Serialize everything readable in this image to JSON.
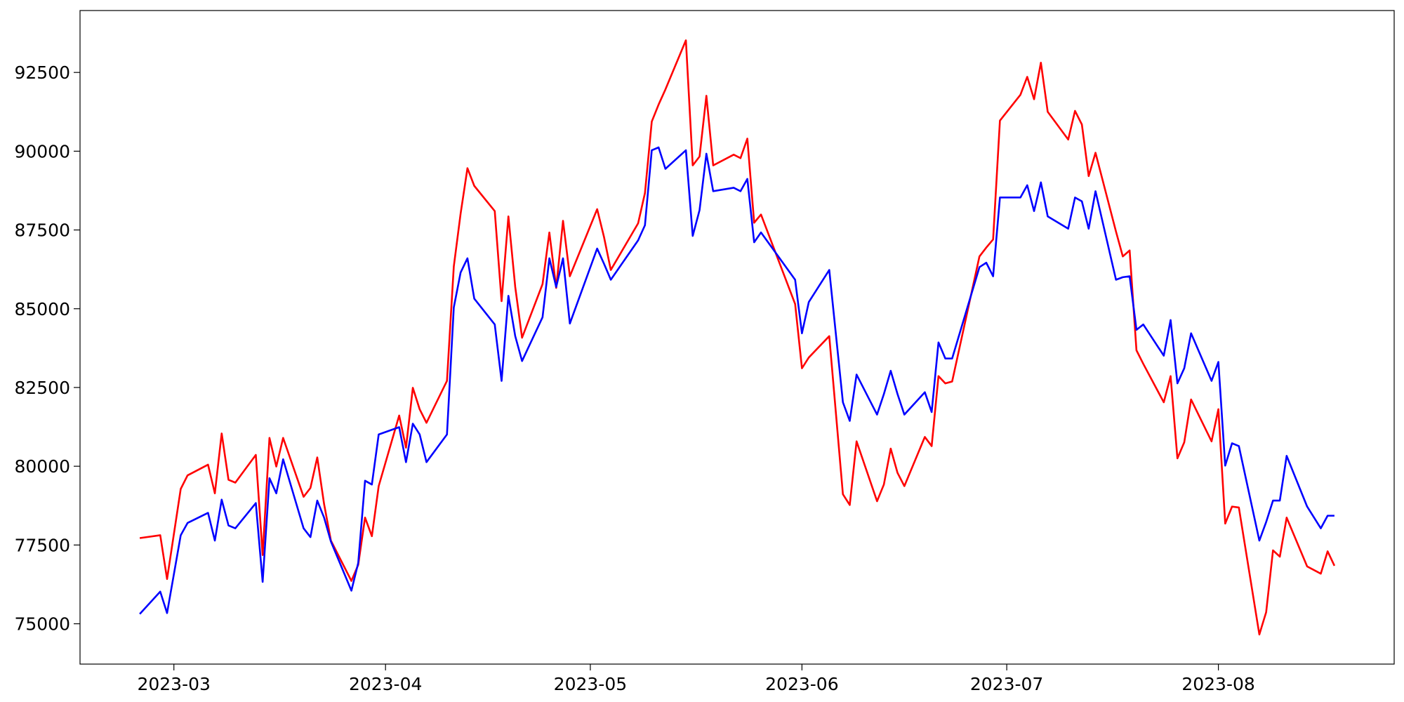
{
  "chart_data": {
    "type": "line",
    "x": [
      19412,
      19415,
      19416,
      19418,
      19419,
      19422,
      19423,
      19424,
      19425,
      19426,
      19429,
      19430,
      19431,
      19432,
      19433,
      19436,
      19437,
      19438,
      19439,
      19440,
      19443,
      19444,
      19445,
      19446,
      19447,
      19450,
      19451,
      19452,
      19453,
      19454,
      19457,
      19458,
      19459,
      19460,
      19461,
      19464,
      19465,
      19466,
      19467,
      19468,
      19471,
      19472,
      19473,
      19474,
      19475,
      19479,
      19480,
      19481,
      19485,
      19486,
      19487,
      19488,
      19489,
      19492,
      19493,
      19494,
      19495,
      19496,
      19499,
      19500,
      19501,
      19502,
      19503,
      19508,
      19509,
      19510,
      19513,
      19515,
      19516,
      19517,
      19520,
      19521,
      19522,
      19523,
      19524,
      19527,
      19528,
      19529,
      19530,
      19531,
      19535,
      19536,
      19537,
      19538,
      19541,
      19542,
      19543,
      19544,
      19545,
      19548,
      19549,
      19550,
      19551,
      19552,
      19555,
      19556,
      19557,
      19558,
      19559,
      19562,
      19563,
      19564,
      19565,
      19566,
      19569,
      19570,
      19571,
      19572,
      19573,
      19576,
      19577,
      19578,
      19579,
      19580,
      19583,
      19585,
      19586,
      19587
    ],
    "series": [
      {
        "color": "#ff0000",
        "values": [
          77720,
          77810,
          76420,
          79280,
          79710,
          80050,
          79140,
          81040,
          79570,
          79480,
          80360,
          77180,
          80900,
          79990,
          80900,
          79030,
          79310,
          80280,
          78800,
          77640,
          76360,
          76870,
          78370,
          77780,
          79370,
          81610,
          80590,
          82490,
          81810,
          81380,
          82710,
          86340,
          88020,
          89460,
          88900,
          88100,
          85240,
          87930,
          85690,
          84080,
          85780,
          87420,
          85660,
          87790,
          86030,
          88160,
          87280,
          86230,
          87710,
          88670,
          90940,
          91480,
          91960,
          93520,
          89550,
          89830,
          91760,
          89550,
          89890,
          89780,
          90400,
          87730,
          87990,
          85150,
          83110,
          83450,
          84130,
          79110,
          78770,
          80790,
          78890,
          79420,
          80560,
          79790,
          79370,
          80930,
          80640,
          82860,
          82630,
          82690,
          86660,
          86940,
          87200,
          90970,
          91790,
          92360,
          91650,
          92810,
          91250,
          90370,
          91280,
          90850,
          89210,
          89950,
          87450,
          86660,
          86850,
          83680,
          83250,
          82030,
          82860,
          80250,
          80760,
          82120,
          80790,
          81810,
          78180,
          78720,
          78690,
          74660,
          75370,
          77330,
          77130,
          78370,
          76820,
          76590,
          77300,
          76840
        ]
      },
      {
        "color": "#0000ff",
        "values": [
          75310,
          76020,
          75340,
          77810,
          78200,
          78520,
          77640,
          78940,
          78120,
          78030,
          78830,
          76330,
          79620,
          79140,
          80220,
          78030,
          77750,
          78910,
          78370,
          77610,
          76050,
          76930,
          79540,
          79420,
          81010,
          81240,
          80130,
          81350,
          81010,
          80130,
          81010,
          85040,
          86150,
          86600,
          85320,
          84500,
          82710,
          85410,
          84130,
          83340,
          84730,
          86600,
          85690,
          86600,
          84530,
          86910,
          86430,
          85920,
          87170,
          87650,
          90030,
          90120,
          89440,
          90030,
          87310,
          88130,
          89920,
          88730,
          88840,
          88730,
          89120,
          87110,
          87420,
          85920,
          84220,
          85210,
          86230,
          82030,
          81440,
          82910,
          81640,
          82290,
          83030,
          82290,
          81640,
          82350,
          81720,
          83930,
          83420,
          83420,
          86320,
          86460,
          86030,
          88530,
          88530,
          88920,
          88100,
          89010,
          87930,
          87540,
          88530,
          88410,
          87540,
          88730,
          85920,
          86000,
          86030,
          84330,
          84500,
          83510,
          84640,
          82630,
          83110,
          84220,
          82710,
          83310,
          80020,
          80730,
          80640,
          77640,
          78230,
          78910,
          78910,
          80330,
          78720,
          78030,
          78430,
          78430
        ]
      }
    ],
    "xlim": [
      19403.25,
      19595.75
    ],
    "xticks": [
      {
        "value": 19417,
        "label": "2023-03"
      },
      {
        "value": 19448,
        "label": "2023-04"
      },
      {
        "value": 19478,
        "label": "2023-05"
      },
      {
        "value": 19509,
        "label": "2023-06"
      },
      {
        "value": 19539,
        "label": "2023-07"
      },
      {
        "value": 19570,
        "label": "2023-08"
      }
    ],
    "ylim": [
      73720,
      94465
    ],
    "yticks": [
      75000,
      77500,
      80000,
      82500,
      85000,
      87500,
      90000,
      92500
    ]
  }
}
